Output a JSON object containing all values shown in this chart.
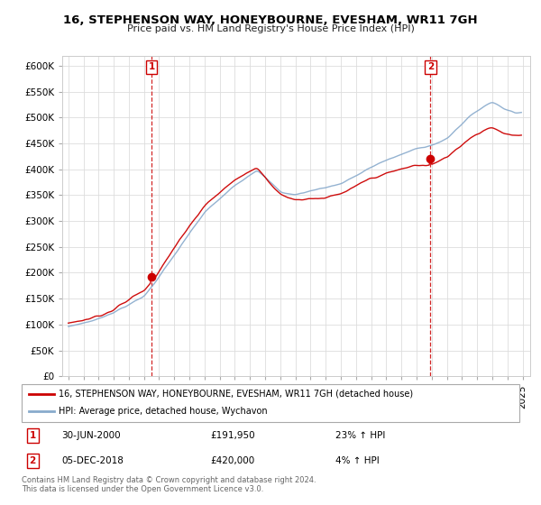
{
  "title": "16, STEPHENSON WAY, HONEYBOURNE, EVESHAM, WR11 7GH",
  "subtitle": "Price paid vs. HM Land Registry's House Price Index (HPI)",
  "sale1_date": "30-JUN-2000",
  "sale1_price": 191950,
  "sale1_pct": "23% ↑ HPI",
  "sale2_date": "05-DEC-2018",
  "sale2_price": 420000,
  "sale2_pct": "4% ↑ HPI",
  "legend_line1": "16, STEPHENSON WAY, HONEYBOURNE, EVESHAM, WR11 7GH (detached house)",
  "legend_line2": "HPI: Average price, detached house, Wychavon",
  "footer": "Contains HM Land Registry data © Crown copyright and database right 2024.\nThis data is licensed under the Open Government Licence v3.0.",
  "price_color": "#cc0000",
  "hpi_color": "#88aacc",
  "ylim": [
    0,
    620000
  ],
  "yticks": [
    0,
    50000,
    100000,
    150000,
    200000,
    250000,
    300000,
    350000,
    400000,
    450000,
    500000,
    550000,
    600000
  ],
  "sale1_year": 2000.5,
  "sale2_year": 2018.92,
  "xstart": 1995.0,
  "xend": 2025.2
}
